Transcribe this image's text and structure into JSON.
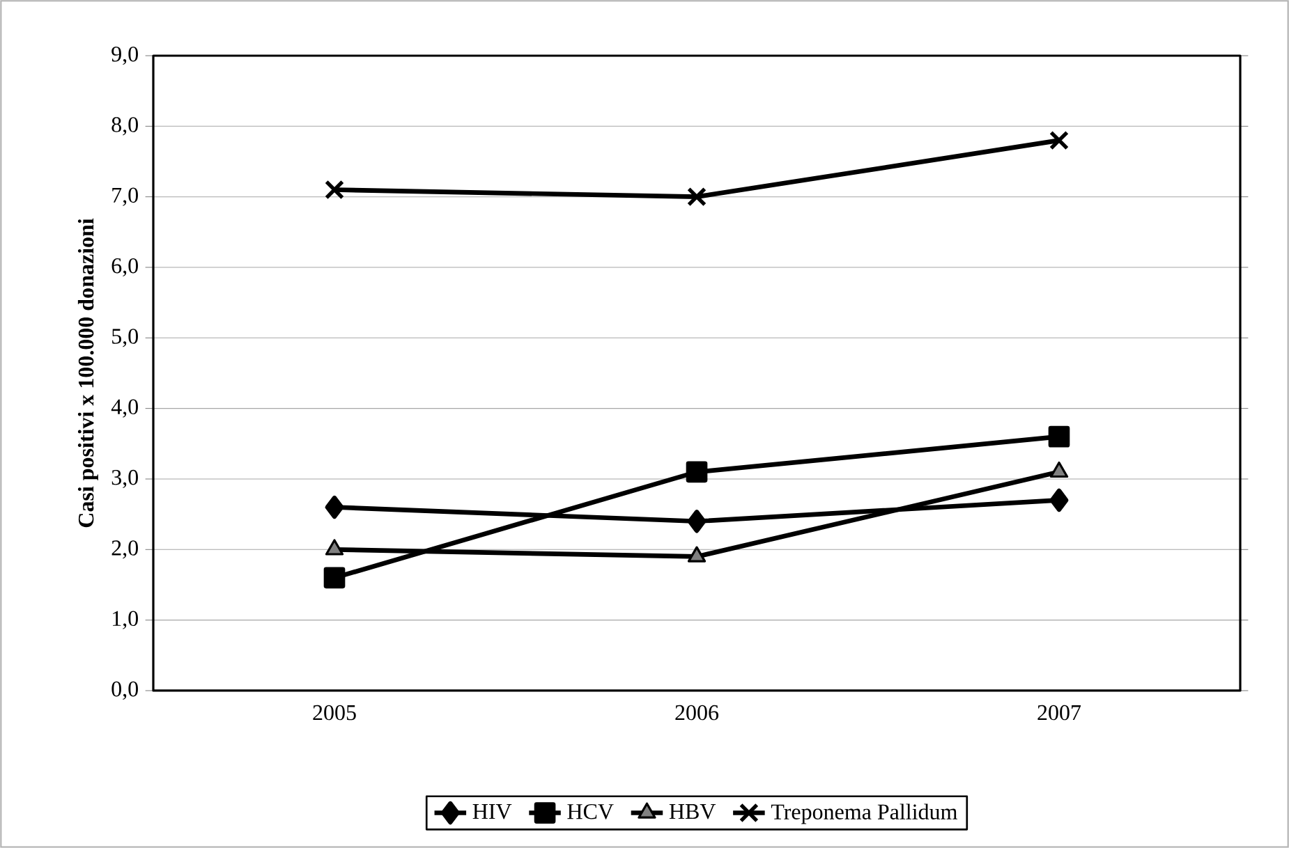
{
  "chart_data": {
    "type": "line",
    "ylabel": "Casi positivi x 100.000 donazioni",
    "categories": [
      "2005",
      "2006",
      "2007"
    ],
    "series": [
      {
        "name": "HIV",
        "color": "#000000",
        "marker": "diamond",
        "values": [
          2.6,
          2.4,
          2.7
        ]
      },
      {
        "name": "HCV",
        "color": "#000000",
        "marker": "square",
        "values": [
          1.6,
          3.1,
          3.6
        ]
      },
      {
        "name": "HBV",
        "color": "#000000",
        "marker": "triangle",
        "values": [
          2.0,
          1.9,
          3.1
        ]
      },
      {
        "name": "Treponema Pallidum",
        "color": "#000000",
        "marker": "cross",
        "values": [
          7.1,
          7.0,
          7.8
        ]
      }
    ],
    "ylim": [
      0,
      9
    ],
    "yticks": [
      {
        "value": 0,
        "label": "0,0"
      },
      {
        "value": 1,
        "label": "1,0"
      },
      {
        "value": 2,
        "label": "2,0"
      },
      {
        "value": 3,
        "label": "3,0"
      },
      {
        "value": 4,
        "label": "4,0"
      },
      {
        "value": 5,
        "label": "5,0"
      },
      {
        "value": 6,
        "label": "6,0"
      },
      {
        "value": 7,
        "label": "7,0"
      },
      {
        "value": 8,
        "label": "8,0"
      },
      {
        "value": 9,
        "label": "9,0"
      }
    ],
    "grid": "y",
    "legend": "bottom",
    "line_style": "solid"
  }
}
